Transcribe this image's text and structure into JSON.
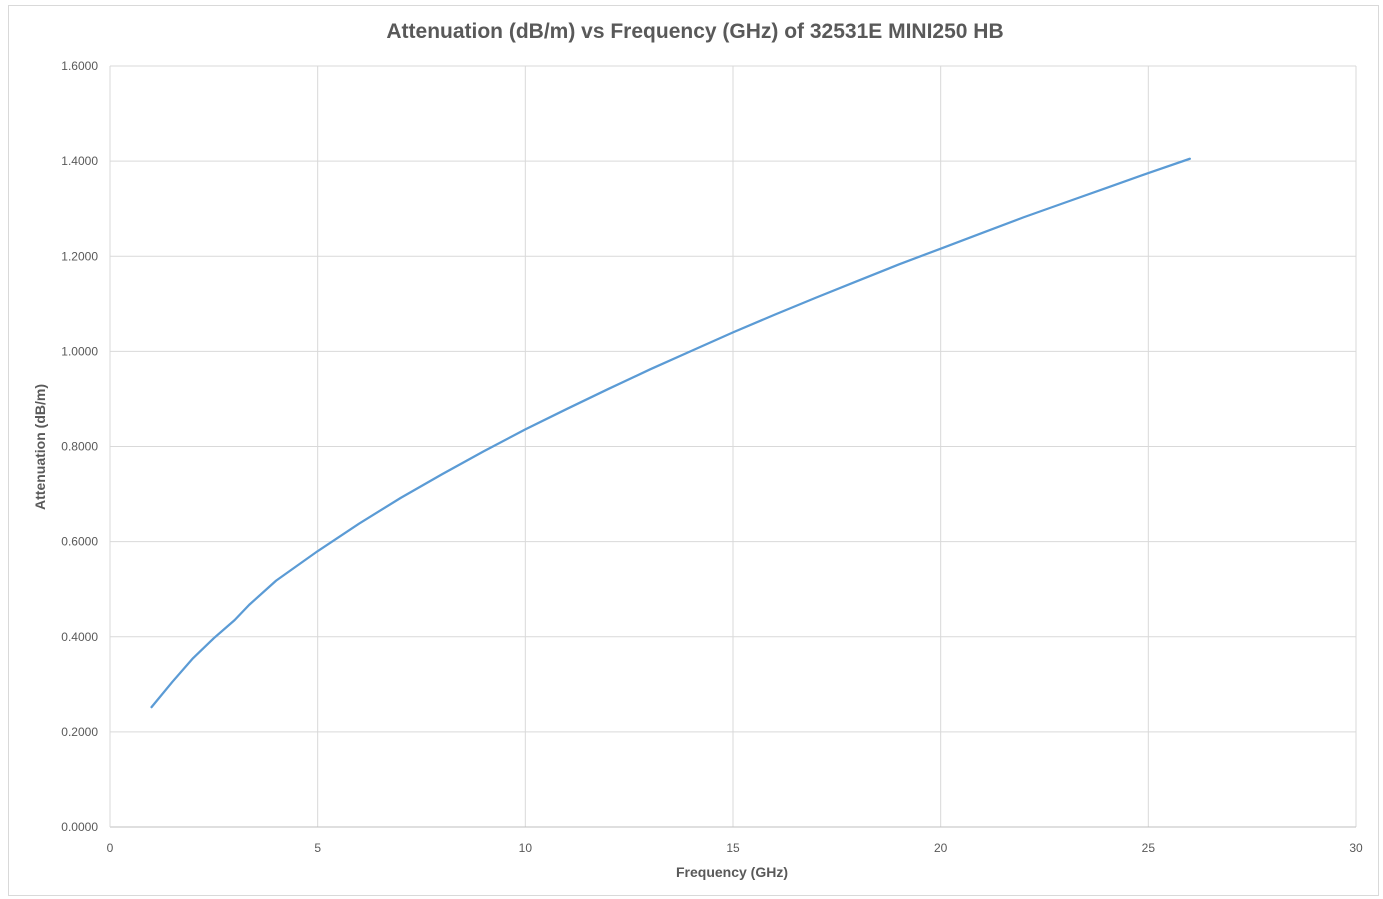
{
  "chart_data": {
    "type": "line",
    "title": "Attenuation (dB/m) vs Frequency (GHz) of 32531E MINI250 HB",
    "xlabel": "Frequency (GHz)",
    "ylabel": "Attenuation (dB/m)",
    "xlim": [
      0,
      30
    ],
    "ylim": [
      0,
      1.6
    ],
    "xticks": [
      0,
      5,
      10,
      15,
      20,
      25,
      30
    ],
    "yticks": [
      0,
      0.2,
      0.4,
      0.6,
      0.8,
      1.0,
      1.2,
      1.4,
      1.6
    ],
    "xtick_labels": [
      "0",
      "5",
      "10",
      "15",
      "20",
      "25",
      "30"
    ],
    "ytick_labels": [
      "0.0000",
      "0.2000",
      "0.4000",
      "0.6000",
      "0.8000",
      "1.0000",
      "1.2000",
      "1.4000",
      "1.6000"
    ],
    "grid": true,
    "legend": false,
    "series": [
      {
        "color": "#5b9bd5",
        "x": [
          1,
          1.5,
          2,
          2.5,
          3,
          3.35,
          4,
          5,
          6,
          7,
          8,
          9,
          10,
          11,
          12,
          13,
          14,
          15,
          16,
          17,
          18,
          19,
          20,
          21,
          22,
          23,
          24,
          25,
          26
        ],
        "y": [
          0.252,
          0.305,
          0.355,
          0.397,
          0.435,
          0.467,
          0.518,
          0.58,
          0.638,
          0.692,
          0.742,
          0.79,
          0.836,
          0.879,
          0.921,
          0.962,
          1.001,
          1.04,
          1.077,
          1.113,
          1.148,
          1.183,
          1.216,
          1.249,
          1.282,
          1.313,
          1.344,
          1.375,
          1.405
        ]
      }
    ]
  }
}
